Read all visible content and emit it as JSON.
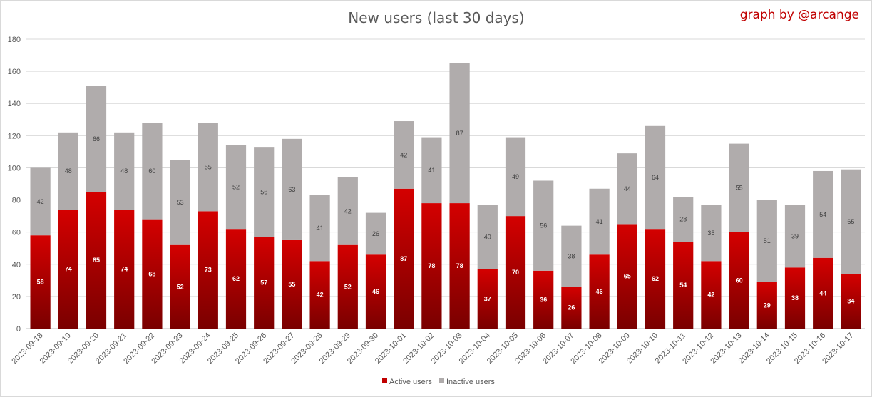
{
  "chart_data": {
    "type": "bar",
    "stacked": true,
    "title": "New users (last 30 days)",
    "credit": "graph by @arcange",
    "ylim": [
      0,
      180
    ],
    "yticks": [
      0,
      20,
      40,
      60,
      80,
      100,
      120,
      140,
      160,
      180
    ],
    "grid": true,
    "legend_position": "bottom",
    "categories": [
      "2023-09-18",
      "2023-09-19",
      "2023-09-20",
      "2023-09-21",
      "2023-09-22",
      "2023-09-23",
      "2023-09-24",
      "2023-09-25",
      "2023-09-26",
      "2023-09-27",
      "2023-09-28",
      "2023-09-29",
      "2023-09-30",
      "2023-10-01",
      "2023-10-02",
      "2023-10-03",
      "2023-10-04",
      "2023-10-05",
      "2023-10-06",
      "2023-10-07",
      "2023-10-08",
      "2023-10-09",
      "2023-10-10",
      "2023-10-11",
      "2023-10-12",
      "2023-10-13",
      "2023-10-14",
      "2023-10-15",
      "2023-10-16",
      "2023-10-17"
    ],
    "series": [
      {
        "name": "Active users",
        "color": "#c00000",
        "values": [
          58,
          74,
          85,
          74,
          68,
          52,
          73,
          62,
          57,
          55,
          42,
          52,
          46,
          87,
          78,
          78,
          37,
          70,
          36,
          26,
          46,
          65,
          62,
          54,
          42,
          60,
          29,
          38,
          44,
          34
        ]
      },
      {
        "name": "Inactive users",
        "color": "#b0acac",
        "values": [
          42,
          48,
          66,
          48,
          60,
          53,
          55,
          52,
          56,
          63,
          41,
          42,
          26,
          42,
          41,
          87,
          40,
          49,
          56,
          38,
          41,
          44,
          64,
          28,
          35,
          55,
          51,
          39,
          54,
          65
        ]
      }
    ]
  }
}
